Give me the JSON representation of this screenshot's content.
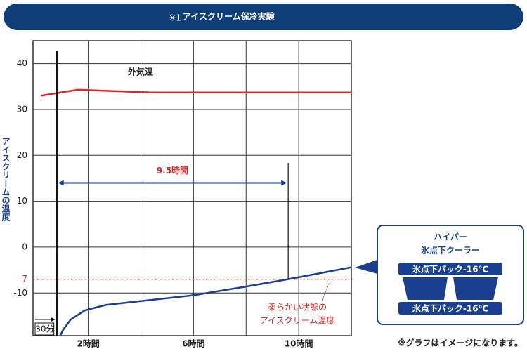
{
  "chart_data": {
    "type": "line",
    "title_mark": "※1",
    "title": "アイスクリーム保冷実験",
    "y_label": "アイスクリームの温度",
    "xlim": [
      -0.1,
      12
    ],
    "ylim": [
      -19.3,
      45
    ],
    "yticks": [
      40,
      30,
      20,
      10,
      0,
      -10
    ],
    "xticks": [
      {
        "value": 2,
        "label": "2時間"
      },
      {
        "value": 6,
        "label": "6時間"
      },
      {
        "value": 10,
        "label": "10時間"
      }
    ],
    "xgrid": [
      2,
      4,
      6,
      8,
      10
    ],
    "grid": true,
    "series": [
      {
        "name": "外気温",
        "color": "#d42a2a",
        "x": [
          0.19,
          1.6,
          4.4,
          12
        ],
        "values": [
          33,
          34.3,
          33.7,
          33.7
        ]
      },
      {
        "color": "#1b3f8f",
        "x": [
          0.93,
          1.07,
          1.33,
          1.87,
          2.67,
          6,
          8,
          9.6,
          12
        ],
        "values": [
          -19.3,
          -17.8,
          -15.8,
          -13.8,
          -12.6,
          -10.5,
          -8.6,
          -7,
          -4.4
        ]
      }
    ],
    "threshold": {
      "value": -7,
      "label": "-7",
      "color": "#d42a2a",
      "note": [
        "柔らかい状態の",
        "アイスクリーム温度"
      ]
    },
    "start_marker": {
      "x": 0.8,
      "label": "30分"
    },
    "duration": {
      "start": 0.8,
      "end": 9.6,
      "y": 14,
      "label": "9.5時間"
    },
    "callout": {
      "title": [
        "ハイパー",
        "氷点下クーラー"
      ],
      "packs": [
        "氷点下パック-16℃",
        "氷点下パック-16℃"
      ]
    },
    "footnote": "※グラフはイメージになります。"
  }
}
